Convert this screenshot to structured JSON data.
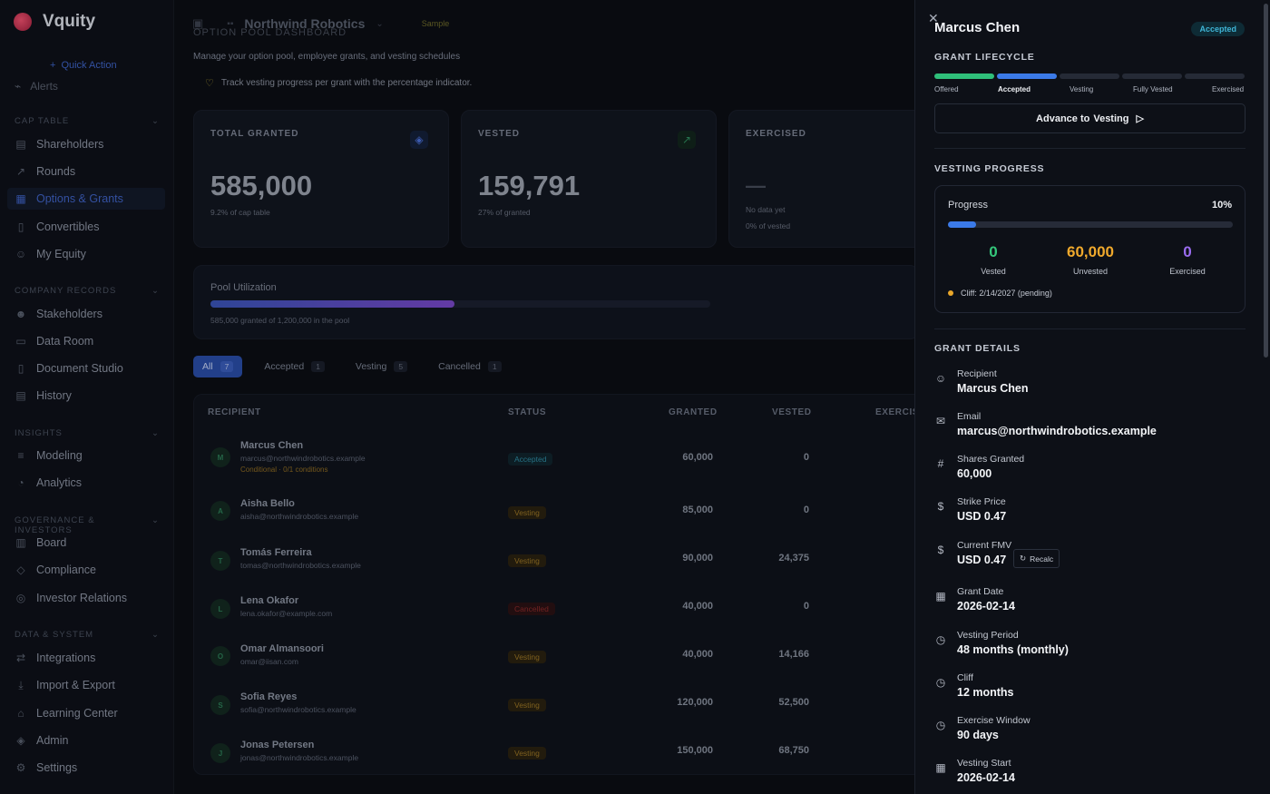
{
  "brand": {
    "name": "Vquity"
  },
  "sidebar": {
    "quick_action": "Quick Action",
    "alerts_ghost": "Alerts",
    "sections": [
      {
        "title": "CAP TABLE",
        "items": [
          "Shareholders",
          "Rounds",
          "Options & Grants",
          "Convertibles",
          "My Equity"
        ]
      },
      {
        "title": "COMPANY RECORDS",
        "items": [
          "Stakeholders",
          "Data Room",
          "Document Studio",
          "History"
        ]
      },
      {
        "title": "INSIGHTS",
        "items": [
          "Modeling",
          "Analytics"
        ]
      },
      {
        "title": "GOVERNANCE & INVESTORS",
        "items": [
          "Board",
          "Compliance",
          "Investor Relations"
        ]
      },
      {
        "title": "DATA & SYSTEM",
        "items": [
          "Integrations",
          "Import & Export",
          "Learning Center",
          "Admin",
          "Settings"
        ]
      }
    ],
    "active_item": "Options & Grants"
  },
  "header": {
    "org": "Northwind Robotics",
    "sample": "Sample",
    "page_title": "OPTION POOL DASHBOARD"
  },
  "main": {
    "subtitle": "Manage your option pool, employee grants, and vesting schedules",
    "tip": "Track vesting progress per grant with the percentage indicator.",
    "kpis": [
      {
        "label": "TOTAL GRANTED",
        "value": "585,000",
        "sub": "9.2% of cap table"
      },
      {
        "label": "VESTED",
        "value": "159,791",
        "sub": "27% of granted"
      },
      {
        "label": "EXERCISED",
        "value": "—",
        "sub_top": "No data yet",
        "sub": "0% of vested"
      }
    ],
    "pool": {
      "label": "Pool Utilization",
      "sub": "585,000 granted of 1,200,000 in the pool",
      "utilization": 0.4875
    },
    "tabs": [
      {
        "label": "All",
        "count": "7"
      },
      {
        "label": "Accepted",
        "count": "1"
      },
      {
        "label": "Vesting",
        "count": "5"
      },
      {
        "label": "Cancelled",
        "count": "1"
      }
    ],
    "table": {
      "headers": [
        "RECIPIENT",
        "STATUS",
        "GRANTED",
        "VESTED",
        "EXERCIS"
      ],
      "rows": [
        {
          "initial": "M",
          "name": "Marcus Chen",
          "email": "marcus@northwindrobotics.example",
          "condition": "Conditional · 0/1 conditions",
          "status": "Accepted",
          "granted": "60,000",
          "vested": "0"
        },
        {
          "initial": "A",
          "name": "Aisha Bello",
          "email": "aisha@northwindrobotics.example",
          "status": "Vesting",
          "granted": "85,000",
          "vested": "0"
        },
        {
          "initial": "T",
          "name": "Tomás Ferreira",
          "email": "tomas@northwindrobotics.example",
          "status": "Vesting",
          "granted": "90,000",
          "vested": "24,375"
        },
        {
          "initial": "L",
          "name": "Lena Okafor",
          "email": "lena.okafor@example.com",
          "status": "Cancelled",
          "granted": "40,000",
          "vested": "0"
        },
        {
          "initial": "O",
          "name": "Omar Almansoori",
          "email": "omar@iisan.com",
          "status": "Vesting",
          "granted": "40,000",
          "vested": "14,166"
        },
        {
          "initial": "S",
          "name": "Sofia Reyes",
          "email": "sofia@northwindrobotics.example",
          "status": "Vesting",
          "granted": "120,000",
          "vested": "52,500"
        },
        {
          "initial": "J",
          "name": "Jonas Petersen",
          "email": "jonas@northwindrobotics.example",
          "status": "Vesting",
          "granted": "150,000",
          "vested": "68,750"
        }
      ]
    }
  },
  "drawer": {
    "title": "Marcus Chen",
    "badge": "Accepted",
    "lifecycle_title": "GRANT LIFECYCLE",
    "lifecycle": [
      "Offered",
      "Accepted",
      "Vesting",
      "Fully Vested",
      "Exercised"
    ],
    "advance_label": "Advance to",
    "advance_target": "Vesting",
    "vesting_title": "VESTING PROGRESS",
    "progress_label": "Progress",
    "progress_pct": "10%",
    "progress_value": 0.1,
    "stats": [
      {
        "value": "0",
        "label": "Vested",
        "color": "#34c77b"
      },
      {
        "value": "60,000",
        "label": "Unvested",
        "color": "#f0a92c"
      },
      {
        "value": "0",
        "label": "Exercised",
        "color": "#9a6cf0"
      }
    ],
    "cliff_note": "Cliff: 2/14/2027 (pending)",
    "details_title": "GRANT DETAILS",
    "details": [
      {
        "icon": "user-icon",
        "label": "Recipient",
        "value": "Marcus Chen"
      },
      {
        "icon": "mail-icon",
        "label": "Email",
        "value": "marcus@northwindrobotics.example"
      },
      {
        "icon": "hash-icon",
        "label": "Shares Granted",
        "value": "60,000"
      },
      {
        "icon": "dollar-icon",
        "label": "Strike Price",
        "value": "USD 0.47"
      },
      {
        "icon": "dollar-icon",
        "label": "Current FMV",
        "value": "USD 0.47",
        "action": "Recalc"
      },
      {
        "icon": "calendar-icon",
        "label": "Grant Date",
        "value": "2026-02-14"
      },
      {
        "icon": "clock-icon",
        "label": "Vesting Period",
        "value": "48 months (monthly)"
      },
      {
        "icon": "clock-icon",
        "label": "Cliff",
        "value": "12 months"
      },
      {
        "icon": "clock-icon",
        "label": "Exercise Window",
        "value": "90 days"
      },
      {
        "icon": "calendar-icon",
        "label": "Vesting Start",
        "value": "2026-02-14"
      }
    ]
  }
}
